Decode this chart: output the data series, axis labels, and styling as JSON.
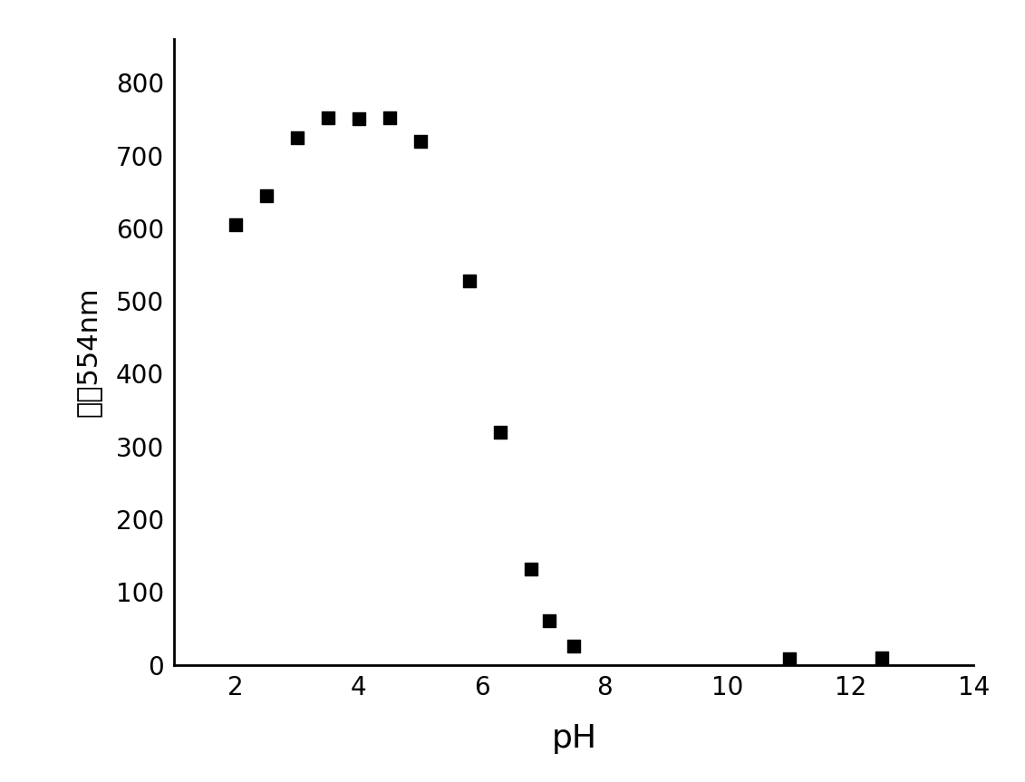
{
  "x": [
    2.0,
    2.5,
    3.0,
    3.5,
    4.0,
    4.5,
    5.0,
    5.8,
    6.3,
    6.8,
    7.1,
    7.5,
    11.0,
    12.5
  ],
  "y": [
    605,
    645,
    725,
    752,
    750,
    752,
    720,
    528,
    320,
    132,
    60,
    25,
    8,
    10
  ],
  "xlabel": "pH",
  "ylabel": "强度554nm",
  "xlim": [
    1,
    14
  ],
  "ylim": [
    0,
    860
  ],
  "xticks": [
    2,
    4,
    6,
    8,
    10,
    12,
    14
  ],
  "yticks": [
    0,
    100,
    200,
    300,
    400,
    500,
    600,
    700,
    800
  ],
  "marker": "s",
  "marker_color": "black",
  "marker_size": 105,
  "background_color": "#ffffff",
  "xlabel_fontsize": 26,
  "ylabel_fontsize": 22,
  "tick_fontsize": 20,
  "spine_linewidth": 2.0
}
